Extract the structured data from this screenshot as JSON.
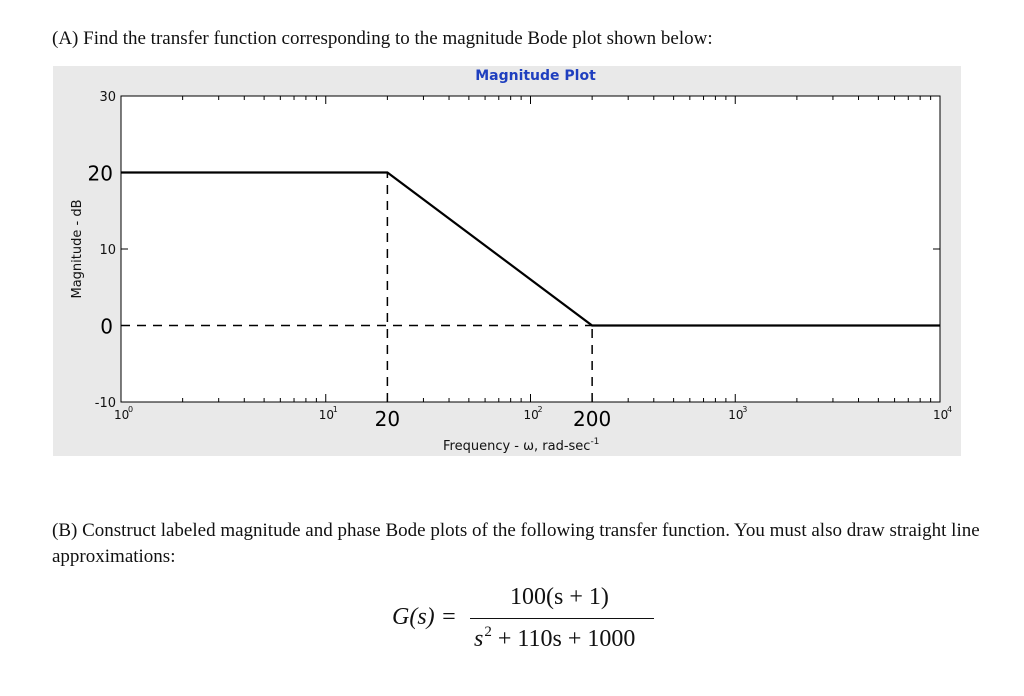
{
  "question_a": "(A)  Find the transfer function corresponding to the magnitude Bode plot shown below:",
  "question_b": "(B) Construct labeled magnitude and phase Bode plots of the following transfer function. You must also draw straight line approximations:",
  "formula": {
    "lhs_fn": "G",
    "lhs_var": "(s)",
    "equals": "=",
    "numerator": "100(s + 1)",
    "denominator_base": "s",
    "denominator_exp": "2",
    "denominator_rest": " + 110s + 1000"
  },
  "chart_data": {
    "type": "line",
    "title": "Magnitude Plot",
    "xlabel": "Frequency - ω, rad-sec",
    "xlabel_sup": "-1",
    "ylabel": "Magnitude - dB",
    "xscale": "log",
    "xlim": [
      1,
      10000
    ],
    "ylim": [
      -10,
      30
    ],
    "x_ticks": [
      {
        "value": 1,
        "base": "10",
        "exp": "0"
      },
      {
        "value": 10,
        "base": "10",
        "exp": "1"
      },
      {
        "value": 100,
        "base": "10",
        "exp": "2"
      },
      {
        "value": 1000,
        "base": "10",
        "exp": "3"
      },
      {
        "value": 10000,
        "base": "10",
        "exp": "4"
      }
    ],
    "y_ticks": [
      {
        "value": -10,
        "label": "-10"
      },
      {
        "value": 10,
        "label": "10"
      },
      {
        "value": 30,
        "label": "30"
      }
    ],
    "annotations": {
      "x_labels": [
        {
          "value": 20,
          "label": "20"
        },
        {
          "value": 200,
          "label": "200"
        }
      ],
      "y_labels": [
        {
          "value": 20,
          "label": "20"
        },
        {
          "value": 0,
          "label": "0"
        }
      ]
    },
    "series": [
      {
        "x": [
          1,
          20,
          200,
          10000
        ],
        "y": [
          20,
          20,
          0,
          0
        ]
      }
    ],
    "dashed_guides": [
      {
        "x": [
          20,
          20
        ],
        "y": [
          -10,
          20
        ]
      },
      {
        "x": [
          200,
          200
        ],
        "y": [
          -10,
          0
        ]
      },
      {
        "x": [
          1,
          200
        ],
        "y": [
          0,
          0
        ]
      }
    ],
    "grid": false
  }
}
